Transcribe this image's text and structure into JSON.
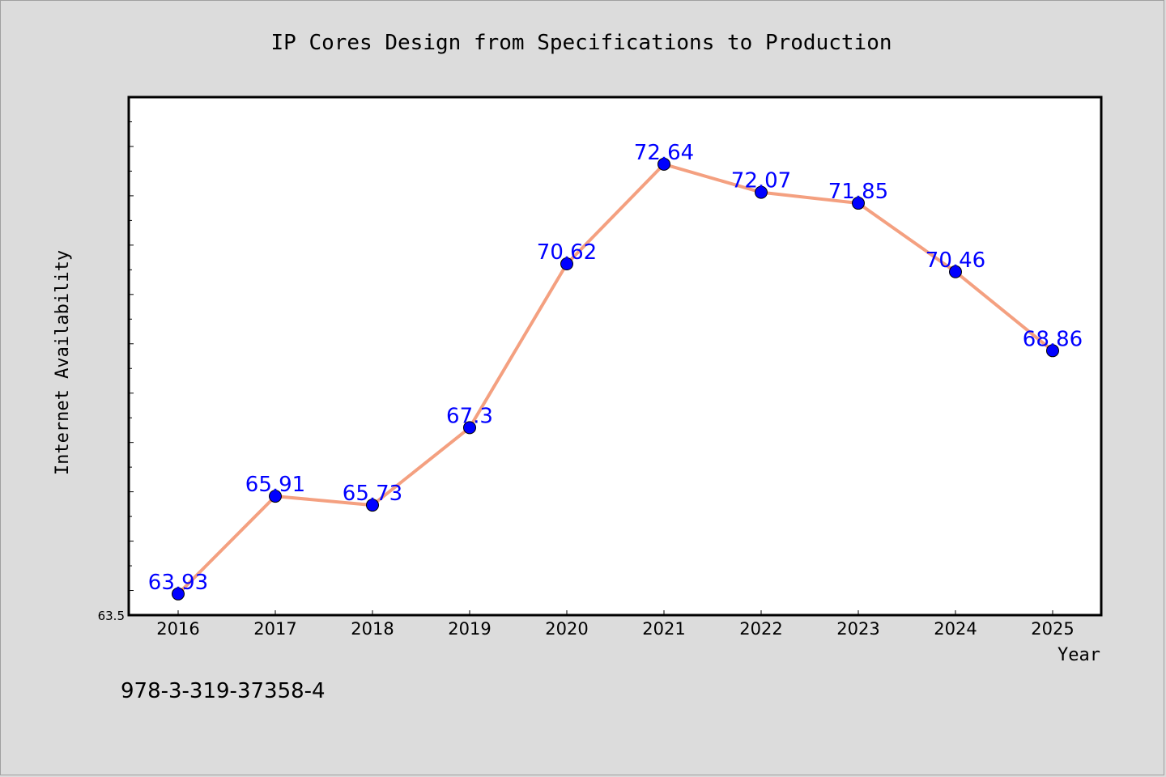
{
  "chart_data": {
    "type": "line",
    "title": "IP Cores Design from Specifications to Production",
    "xlabel": "Year",
    "ylabel": "Internet Availability",
    "categories": [
      "2016",
      "2017",
      "2018",
      "2019",
      "2020",
      "2021",
      "2022",
      "2023",
      "2024",
      "2025"
    ],
    "series": [
      {
        "values": [
          63.93,
          65.91,
          65.73,
          67.3,
          70.62,
          72.64,
          72.07,
          71.85,
          70.46,
          68.86
        ],
        "data_labels": [
          "63.93",
          "65.91",
          "65.73",
          "67.3",
          "70.62",
          "72.64",
          "72.07",
          "71.85",
          "70.46",
          "68.86"
        ]
      }
    ],
    "ylim": [
      63.5,
      74.0
    ],
    "y_tick_label": "63.5",
    "grid": false,
    "colors": {
      "line": "#f4a080",
      "marker": "#0000ff",
      "data_label": "#0000ff",
      "background": "#dcdcdc",
      "plot_area": "#ffffff"
    }
  },
  "footer": {
    "isbn": "978-3-319-37358-4"
  }
}
